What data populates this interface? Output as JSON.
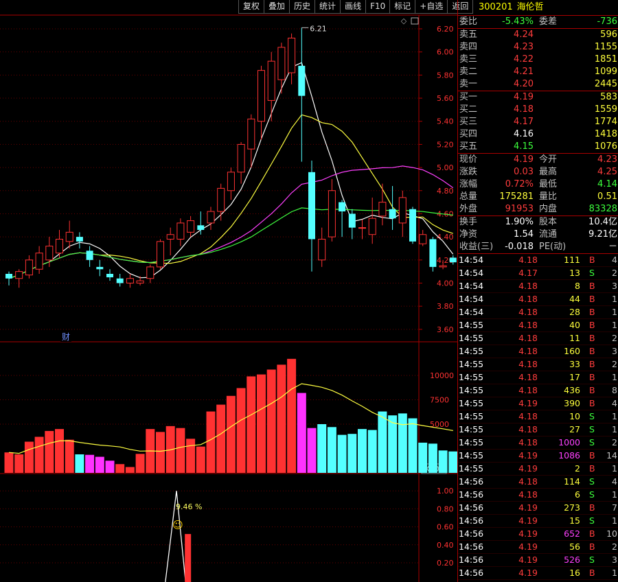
{
  "toolbar": {
    "buttons": [
      "复权",
      "叠加",
      "历史",
      "统计",
      "画线",
      "F10",
      "标记",
      "+自选",
      "返回"
    ]
  },
  "chart_data": {
    "type": "candlestick",
    "price_ticks": [
      "6.20",
      "6.00",
      "5.80",
      "5.60",
      "5.40",
      "5.20",
      "5.00",
      "4.80",
      "4.60",
      "4.40",
      "4.20",
      "4.00",
      "3.80",
      "3.60"
    ],
    "peak_label": "6.21",
    "fin_marker": "财",
    "vol_ticks": [
      "10000",
      "7500",
      "5000"
    ],
    "vol_unit": "X100",
    "ind_ticks": [
      "1.00",
      "0.80",
      "0.60",
      "0.40",
      "0.20"
    ],
    "ind_label": "9.46 %",
    "candles": [
      [
        4.08,
        4.04,
        4.1,
        3.98
      ],
      [
        4.04,
        4.1,
        4.12,
        3.96
      ],
      [
        4.07,
        4.2,
        4.24,
        4.04
      ],
      [
        4.12,
        4.26,
        4.32,
        4.08
      ],
      [
        4.2,
        4.32,
        4.4,
        4.14
      ],
      [
        4.26,
        4.38,
        4.46,
        4.22
      ],
      [
        4.36,
        4.44,
        4.54,
        4.3
      ],
      [
        4.4,
        4.36,
        4.44,
        4.3
      ],
      [
        4.28,
        4.2,
        4.32,
        4.14
      ],
      [
        4.14,
        4.12,
        4.2,
        4.06
      ],
      [
        4.08,
        4.05,
        4.12,
        4.02
      ],
      [
        4.04,
        4.0,
        4.08,
        3.97
      ],
      [
        4.0,
        4.04,
        4.08,
        3.96
      ],
      [
        4.0,
        4.02,
        4.06,
        3.98
      ],
      [
        4.04,
        4.14,
        4.16,
        4.0
      ],
      [
        4.14,
        4.36,
        4.38,
        4.12
      ],
      [
        4.38,
        4.42,
        4.48,
        4.24
      ],
      [
        4.38,
        4.52,
        4.56,
        4.32
      ],
      [
        4.44,
        4.54,
        4.58,
        4.4
      ],
      [
        4.5,
        4.46,
        4.62,
        4.42
      ],
      [
        4.52,
        4.62,
        4.66,
        4.46
      ],
      [
        4.62,
        4.82,
        4.86,
        4.54
      ],
      [
        4.8,
        4.96,
        5.0,
        4.72
      ],
      [
        4.96,
        5.2,
        5.22,
        4.86
      ],
      [
        5.16,
        5.42,
        5.46,
        5.0
      ],
      [
        5.4,
        5.84,
        5.88,
        5.24
      ],
      [
        5.58,
        5.92,
        6.0,
        5.4
      ],
      [
        5.76,
        6.04,
        6.08,
        5.64
      ],
      [
        5.82,
        6.12,
        6.16,
        5.72
      ],
      [
        5.88,
        5.62,
        6.21,
        5.05
      ],
      [
        4.96,
        4.38,
        5.06,
        4.1
      ],
      [
        4.2,
        4.38,
        4.48,
        4.14
      ],
      [
        4.4,
        4.8,
        4.9,
        4.36
      ],
      [
        4.7,
        4.62,
        4.72,
        4.4
      ],
      [
        4.6,
        4.48,
        4.64,
        4.38
      ],
      [
        4.48,
        4.48,
        4.55,
        4.38
      ],
      [
        4.42,
        4.56,
        4.74,
        4.34
      ],
      [
        4.58,
        4.7,
        4.86,
        4.5
      ],
      [
        4.64,
        4.56,
        4.84,
        4.46
      ],
      [
        4.52,
        4.74,
        4.8,
        4.4
      ],
      [
        4.64,
        4.36,
        4.66,
        4.34
      ],
      [
        4.34,
        4.42,
        4.46,
        4.32
      ],
      [
        4.38,
        4.14,
        4.4,
        4.1
      ],
      [
        4.14,
        4.15,
        4.2,
        4.12
      ],
      [
        4.22,
        4.18,
        4.24,
        4.16
      ]
    ],
    "volumes": [
      2100,
      1900,
      3200,
      3700,
      4300,
      4500,
      3400,
      1900,
      1850,
      1650,
      1250,
      900,
      600,
      1950,
      4500,
      4200,
      4800,
      4600,
      3500,
      2700,
      6300,
      7000,
      7900,
      8700,
      9900,
      10100,
      10600,
      11100,
      11700,
      8200,
      4600,
      5000,
      4700,
      3900,
      4000,
      4500,
      4400,
      6300,
      5900,
      6100,
      5600,
      3100,
      3000,
      2300,
      2200
    ],
    "vol_colors": [
      "r",
      "r",
      "r",
      "r",
      "r",
      "r",
      "r",
      "c",
      "m",
      "m",
      "m",
      "r",
      "r",
      "r",
      "r",
      "r",
      "r",
      "r",
      "r",
      "r",
      "r",
      "r",
      "r",
      "r",
      "r",
      "r",
      "r",
      "r",
      "r",
      "m",
      "m",
      "c",
      "c",
      "c",
      "c",
      "c",
      "c",
      "c",
      "c",
      "c",
      "c",
      "c",
      "c",
      "c",
      "c"
    ]
  },
  "panel": {
    "code": "300201",
    "name": "海伦哲",
    "wb": {
      "l": "委比",
      "v": "-5.43%",
      "l2": "委差",
      "v2": "-736"
    },
    "asks": [
      {
        "l": "卖五",
        "p": "4.24",
        "v": "596"
      },
      {
        "l": "卖四",
        "p": "4.23",
        "v": "1155"
      },
      {
        "l": "卖三",
        "p": "4.22",
        "v": "1851"
      },
      {
        "l": "卖二",
        "p": "4.21",
        "v": "1099"
      },
      {
        "l": "卖一",
        "p": "4.20",
        "v": "2445"
      }
    ],
    "bids": [
      {
        "l": "买一",
        "p": "4.19",
        "v": "583",
        "c": "r"
      },
      {
        "l": "买二",
        "p": "4.18",
        "v": "1559",
        "c": "r"
      },
      {
        "l": "买三",
        "p": "4.17",
        "v": "1774",
        "c": "r"
      },
      {
        "l": "买四",
        "p": "4.16",
        "v": "1418",
        "c": "w"
      },
      {
        "l": "买五",
        "p": "4.15",
        "v": "1076",
        "c": "g"
      }
    ],
    "stats1": [
      {
        "l": "现价",
        "v": "4.19",
        "c": "r",
        "l2": "今开",
        "v2": "4.23",
        "c2": "r"
      },
      {
        "l": "涨跌",
        "v": "0.03",
        "c": "r",
        "l2": "最高",
        "v2": "4.25",
        "c2": "r"
      },
      {
        "l": "涨幅",
        "v": "0.72%",
        "c": "r",
        "l2": "最低",
        "v2": "4.14",
        "c2": "g"
      },
      {
        "l": "总量",
        "v": "175281",
        "c": "y",
        "l2": "量比",
        "v2": "0.51",
        "c2": "y"
      },
      {
        "l": "外盘",
        "v": "91953",
        "c": "r",
        "l2": "内盘",
        "v2": "83328",
        "c2": "g"
      }
    ],
    "stats2": [
      {
        "l": "换手",
        "v": "1.90%",
        "c": "w",
        "l2": "股本",
        "v2": "10.4亿",
        "c2": "w"
      },
      {
        "l": "净资",
        "v": "1.54",
        "c": "w",
        "l2": "流通",
        "v2": "9.21亿",
        "c2": "w"
      },
      {
        "l": "收益(三)",
        "v": "-0.018",
        "c": "w",
        "l2": "PE(动)",
        "v2": "－",
        "c2": "w"
      }
    ],
    "ticks": [
      {
        "t": "14:54",
        "p": "4.18",
        "v": "111",
        "vc": "y",
        "bs": "B",
        "n": "4"
      },
      {
        "t": "14:54",
        "p": "4.17",
        "v": "13",
        "vc": "y",
        "bs": "S",
        "n": "2"
      },
      {
        "t": "14:54",
        "p": "4.18",
        "v": "8",
        "vc": "y",
        "bs": "B",
        "n": "3"
      },
      {
        "t": "14:54",
        "p": "4.18",
        "v": "44",
        "vc": "y",
        "bs": "B",
        "n": "1"
      },
      {
        "t": "14:54",
        "p": "4.18",
        "v": "28",
        "vc": "y",
        "bs": "B",
        "n": "1"
      },
      {
        "t": "14:55",
        "p": "4.18",
        "v": "40",
        "vc": "y",
        "bs": "B",
        "n": "1"
      },
      {
        "t": "14:55",
        "p": "4.18",
        "v": "11",
        "vc": "y",
        "bs": "B",
        "n": "2"
      },
      {
        "t": "14:55",
        "p": "4.18",
        "v": "160",
        "vc": "y",
        "bs": "B",
        "n": "3"
      },
      {
        "t": "14:55",
        "p": "4.18",
        "v": "33",
        "vc": "y",
        "bs": "B",
        "n": "2"
      },
      {
        "t": "14:55",
        "p": "4.18",
        "v": "17",
        "vc": "y",
        "bs": "B",
        "n": "1"
      },
      {
        "t": "14:55",
        "p": "4.18",
        "v": "436",
        "vc": "y",
        "bs": "B",
        "n": "8"
      },
      {
        "t": "14:55",
        "p": "4.19",
        "v": "390",
        "vc": "y",
        "bs": "B",
        "n": "4"
      },
      {
        "t": "14:55",
        "p": "4.18",
        "v": "10",
        "vc": "y",
        "bs": "S",
        "n": "1"
      },
      {
        "t": "14:55",
        "p": "4.18",
        "v": "27",
        "vc": "y",
        "bs": "S",
        "n": "1"
      },
      {
        "t": "14:55",
        "p": "4.18",
        "v": "1000",
        "vc": "m",
        "bs": "S",
        "n": "2"
      },
      {
        "t": "14:55",
        "p": "4.19",
        "v": "1086",
        "vc": "m",
        "bs": "B",
        "n": "14"
      },
      {
        "t": "14:55",
        "p": "4.19",
        "v": "2",
        "vc": "y",
        "bs": "B",
        "n": "1"
      },
      {
        "t": "14:56",
        "p": "4.18",
        "v": "114",
        "vc": "y",
        "bs": "S",
        "n": "4"
      },
      {
        "t": "14:56",
        "p": "4.18",
        "v": "6",
        "vc": "y",
        "bs": "S",
        "n": "1"
      },
      {
        "t": "14:56",
        "p": "4.19",
        "v": "273",
        "vc": "y",
        "bs": "B",
        "n": "7"
      },
      {
        "t": "14:56",
        "p": "4.19",
        "v": "15",
        "vc": "y",
        "bs": "S",
        "n": "1"
      },
      {
        "t": "14:56",
        "p": "4.19",
        "v": "652",
        "vc": "m",
        "bs": "B",
        "n": "10"
      },
      {
        "t": "14:56",
        "p": "4.19",
        "v": "56",
        "vc": "y",
        "bs": "B",
        "n": "2"
      },
      {
        "t": "14:56",
        "p": "4.19",
        "v": "526",
        "vc": "m",
        "bs": "S",
        "n": "3"
      },
      {
        "t": "14:56",
        "p": "4.19",
        "v": "16",
        "vc": "y",
        "bs": "B",
        "n": "1"
      }
    ]
  }
}
